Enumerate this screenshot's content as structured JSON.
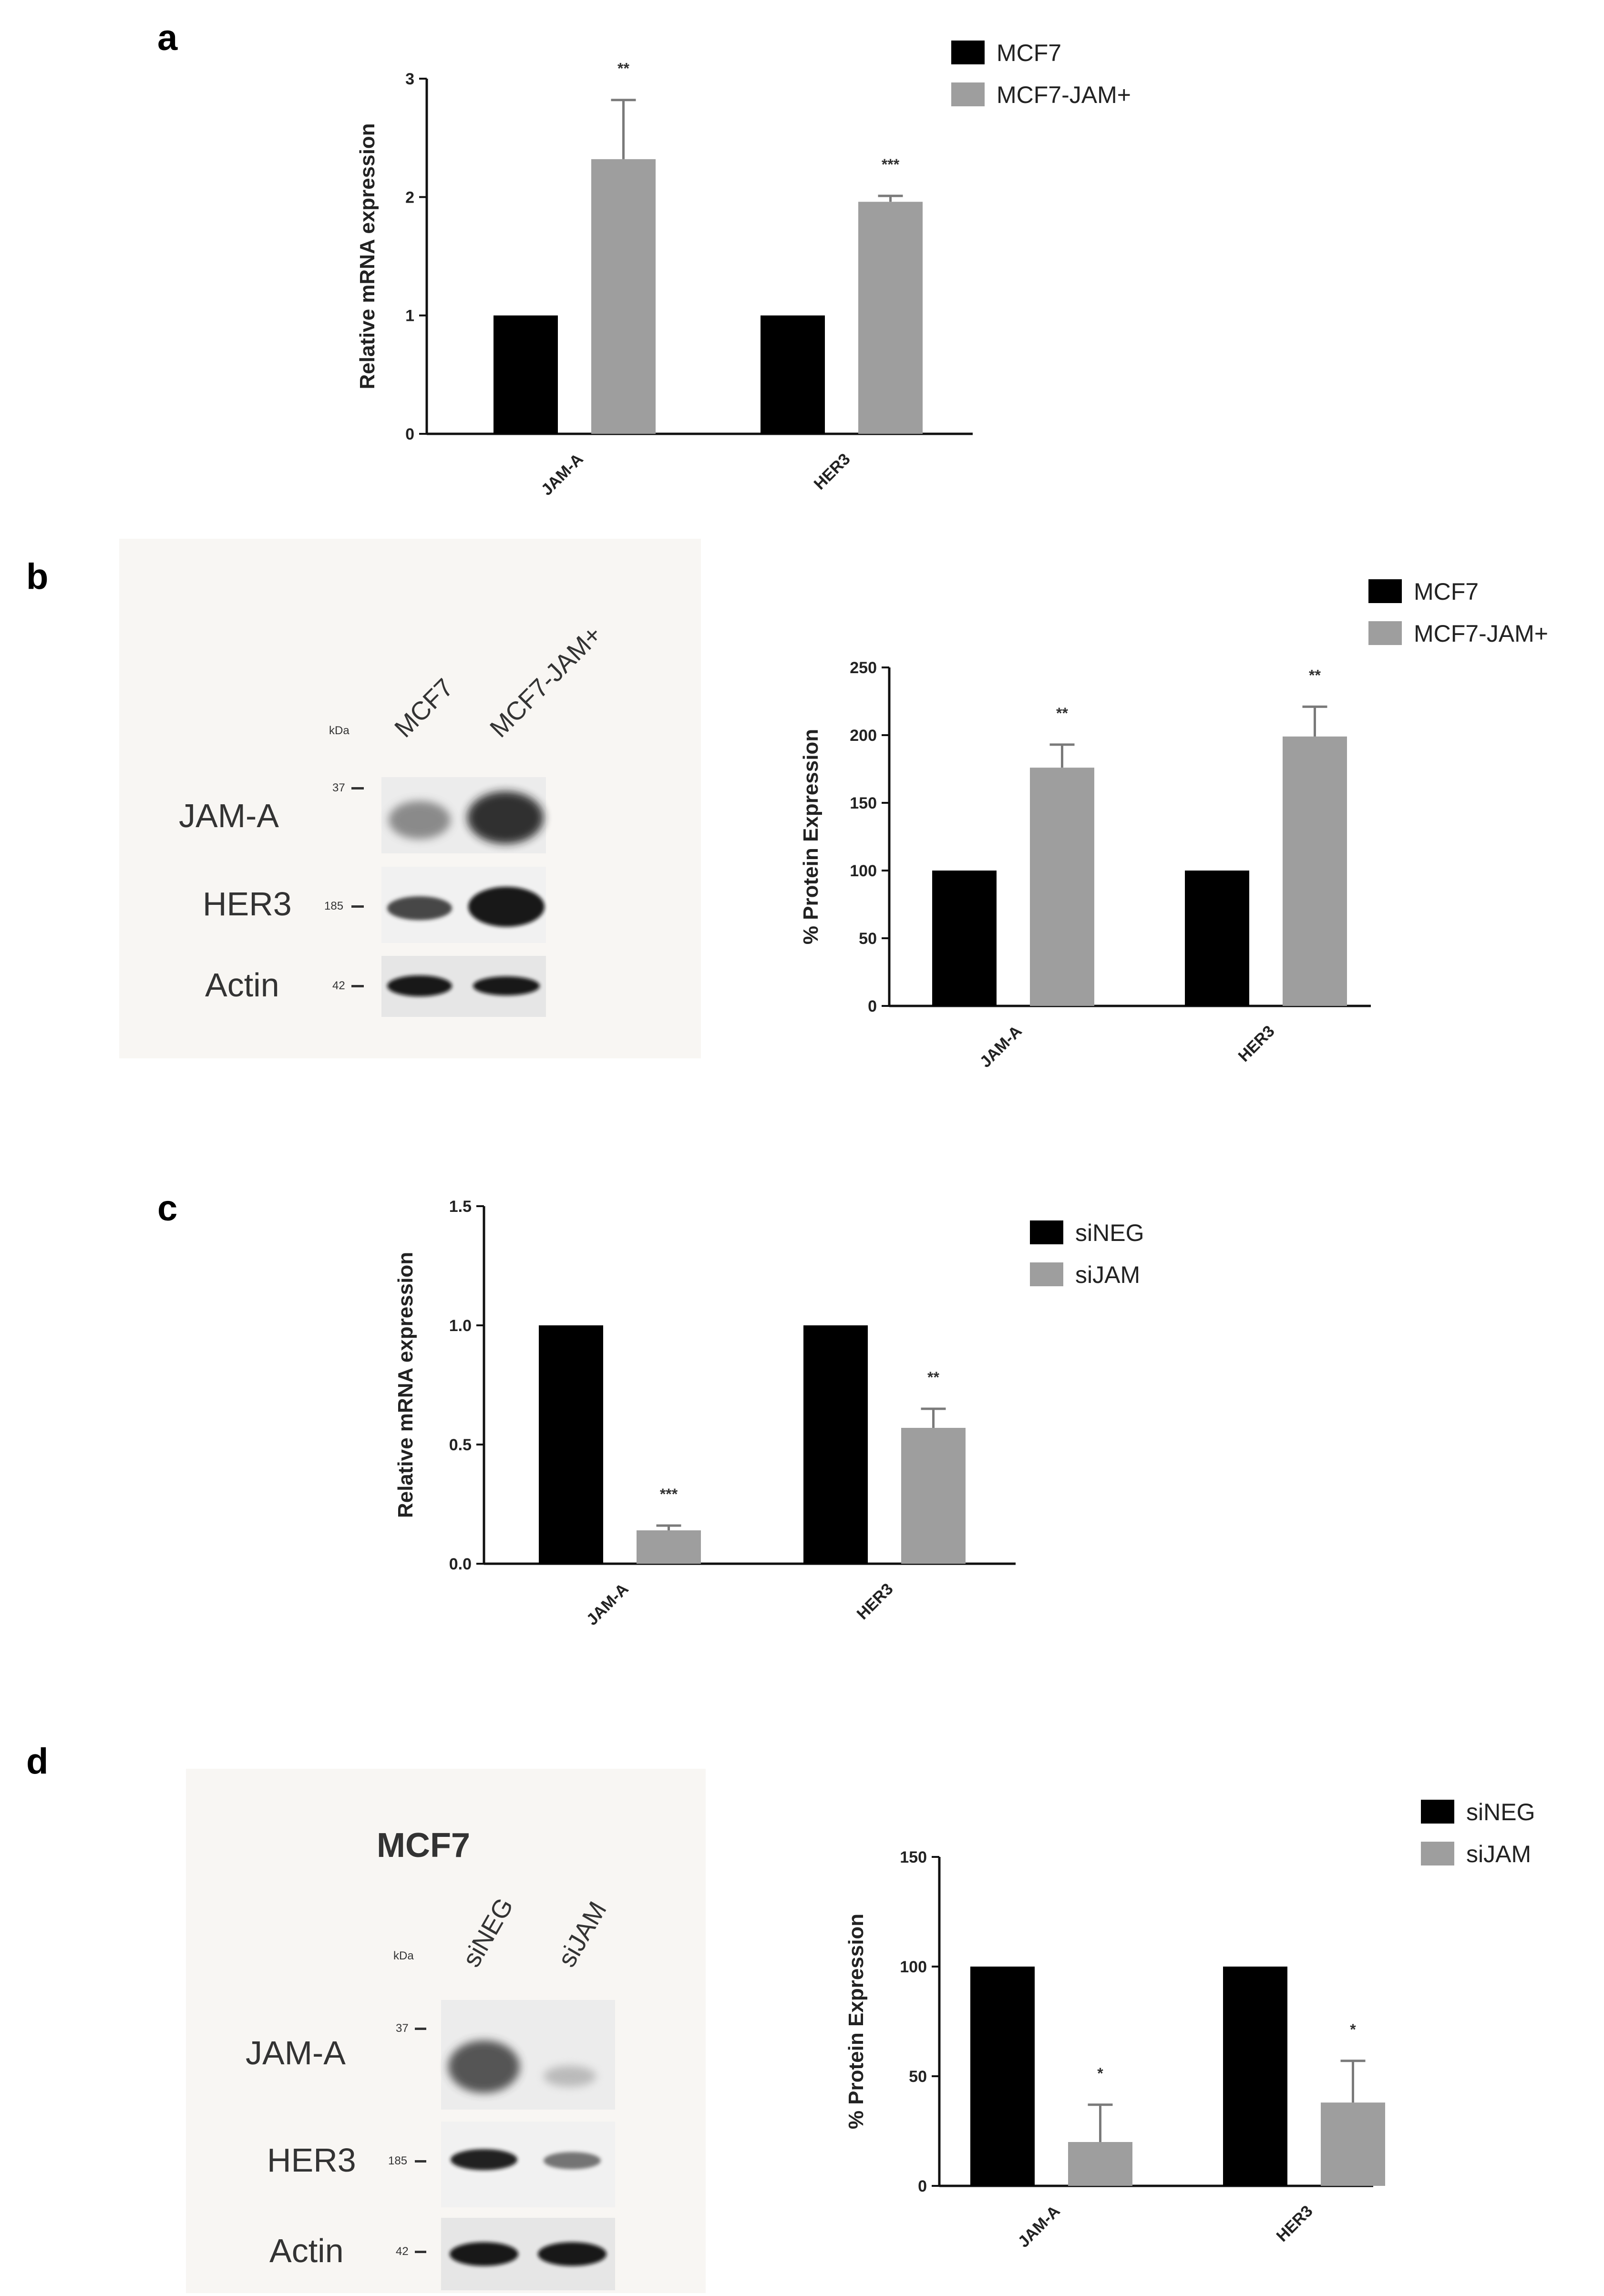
{
  "panels": {
    "a": "a",
    "b": "b",
    "c": "c",
    "d": "d"
  },
  "chart_data": [
    {
      "id": "a",
      "type": "bar",
      "title": "",
      "xlabel": "",
      "ylabel": "Relative mRNA expression",
      "ylim": [
        0,
        3
      ],
      "yticks": [
        "0",
        "1",
        "2",
        "3"
      ],
      "categories": [
        "JAM-A",
        "HER3"
      ],
      "series": [
        {
          "name": "MCF7",
          "color": "#000000",
          "values": [
            1.0,
            1.0
          ],
          "errors": [
            0,
            0
          ],
          "sig": [
            "",
            ""
          ]
        },
        {
          "name": "MCF7-JAM+",
          "color": "#9e9e9e",
          "values": [
            2.32,
            1.96
          ],
          "errors": [
            0.5,
            0.05
          ],
          "sig": [
            "**",
            "***"
          ]
        }
      ],
      "legend": "top-right",
      "grid": false
    },
    {
      "id": "b",
      "type": "bar",
      "title": "",
      "xlabel": "",
      "ylabel": "% Protein Expression",
      "ylim": [
        0,
        250
      ],
      "yticks": [
        "0",
        "50",
        "100",
        "150",
        "200",
        "250"
      ],
      "categories": [
        "JAM-A",
        "HER3"
      ],
      "series": [
        {
          "name": "MCF7",
          "color": "#000000",
          "values": [
            100,
            100
          ],
          "errors": [
            0,
            0
          ],
          "sig": [
            "",
            ""
          ]
        },
        {
          "name": "MCF7-JAM+",
          "color": "#9e9e9e",
          "values": [
            176,
            199
          ],
          "errors": [
            17,
            22
          ],
          "sig": [
            "**",
            "**"
          ]
        }
      ],
      "legend": "top-right",
      "grid": false
    },
    {
      "id": "c",
      "type": "bar",
      "title": "",
      "xlabel": "",
      "ylabel": "Relative mRNA expression",
      "ylim": [
        0,
        1.5
      ],
      "yticks": [
        "0.0",
        "0.5",
        "1.0",
        "1.5"
      ],
      "categories": [
        "JAM-A",
        "HER3"
      ],
      "series": [
        {
          "name": "siNEG",
          "color": "#000000",
          "values": [
            1.0,
            1.0
          ],
          "errors": [
            0,
            0
          ],
          "sig": [
            "",
            ""
          ]
        },
        {
          "name": "siJAM",
          "color": "#9e9e9e",
          "values": [
            0.14,
            0.57
          ],
          "errors": [
            0.02,
            0.08
          ],
          "sig": [
            "***",
            "**"
          ]
        }
      ],
      "legend": "top-right",
      "grid": false
    },
    {
      "id": "d",
      "type": "bar",
      "title": "",
      "xlabel": "",
      "ylabel": "% Protein Expression",
      "ylim": [
        0,
        150
      ],
      "yticks": [
        "0",
        "50",
        "100",
        "150"
      ],
      "categories": [
        "JAM-A",
        "HER3"
      ],
      "series": [
        {
          "name": "siNEG",
          "color": "#000000",
          "values": [
            100,
            100
          ],
          "errors": [
            0,
            0
          ],
          "sig": [
            "",
            ""
          ]
        },
        {
          "name": "siJAM",
          "color": "#9e9e9e",
          "values": [
            20,
            38
          ],
          "errors": [
            17,
            19
          ],
          "sig": [
            "*",
            "*"
          ]
        }
      ],
      "legend": "top-right",
      "grid": false
    }
  ],
  "blots": {
    "b": {
      "kda_header": "kDa",
      "lanes": [
        "MCF7",
        "MCF7-JAM+"
      ],
      "rows": [
        {
          "label": "JAM-A",
          "kda": "37"
        },
        {
          "label": "HER3",
          "kda": "185"
        },
        {
          "label": "Actin",
          "kda": "42"
        }
      ]
    },
    "d": {
      "cell_line": "MCF7",
      "kda_header": "kDa",
      "lanes": [
        "siNEG",
        "siJAM"
      ],
      "rows": [
        {
          "label": "JAM-A",
          "kda": "37"
        },
        {
          "label": "HER3",
          "kda": "185"
        },
        {
          "label": "Actin",
          "kda": "42"
        }
      ]
    }
  }
}
